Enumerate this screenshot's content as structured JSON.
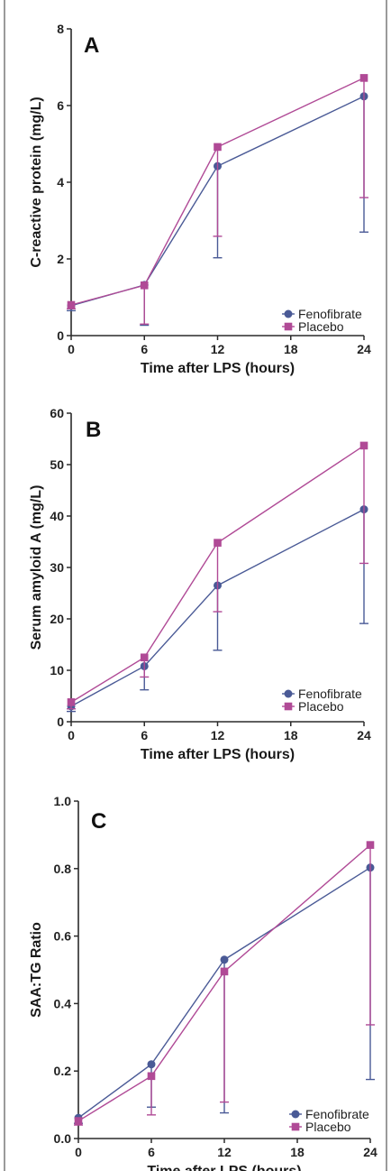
{
  "chart_data": [
    {
      "type": "line",
      "panel_label": "A",
      "xlabel": "Time after LPS (hours)",
      "ylabel": "C-reactive protein (mg/L)",
      "x_ticks": [
        0,
        6,
        12,
        18,
        24
      ],
      "y_ticks": [
        0,
        2,
        4,
        6,
        8
      ],
      "xlim": [
        0,
        24
      ],
      "ylim": [
        0,
        8
      ],
      "series": [
        {
          "name": "Fenofibrate",
          "x": [
            0,
            6,
            12,
            24
          ],
          "values": [
            0.78,
            1.32,
            4.42,
            6.24
          ],
          "error_low": [
            0.65,
            0.27,
            2.03,
            2.7
          ]
        },
        {
          "name": "Placebo",
          "x": [
            0,
            6,
            12,
            24
          ],
          "values": [
            0.8,
            1.31,
            4.92,
            6.72
          ],
          "error_low": [
            0.7,
            0.3,
            2.59,
            3.6
          ]
        }
      ]
    },
    {
      "type": "line",
      "panel_label": "B",
      "xlabel": "Time after LPS (hours)",
      "ylabel": "Serum amyloid A (mg/L)",
      "x_ticks": [
        0,
        6,
        12,
        18,
        24
      ],
      "y_ticks": [
        0,
        10,
        20,
        30,
        40,
        50,
        60
      ],
      "xlim": [
        0,
        24
      ],
      "ylim": [
        0,
        60
      ],
      "series": [
        {
          "name": "Fenofibrate",
          "x": [
            0,
            6,
            12,
            24
          ],
          "values": [
            3.0,
            10.8,
            26.5,
            41.3
          ],
          "error_low": [
            2.0,
            6.2,
            13.9,
            19.1
          ]
        },
        {
          "name": "Placebo",
          "x": [
            0,
            6,
            12,
            24
          ],
          "values": [
            3.8,
            12.5,
            34.8,
            53.7
          ],
          "error_low": [
            2.5,
            8.7,
            21.4,
            30.8
          ]
        }
      ]
    },
    {
      "type": "line",
      "panel_label": "C",
      "xlabel": "Time after LPS (hours)",
      "ylabel": "SAA:TG Ratio",
      "x_ticks": [
        0,
        6,
        12,
        18,
        24
      ],
      "y_ticks": [
        "0.0",
        "0.2",
        "0.4",
        "0.6",
        "0.8",
        "1.0"
      ],
      "xlim": [
        0,
        24
      ],
      "ylim": [
        0,
        1.0
      ],
      "series": [
        {
          "name": "Fenofibrate",
          "x": [
            0,
            6,
            12,
            24
          ],
          "values": [
            0.061,
            0.22,
            0.53,
            0.803
          ],
          "error_low": [
            0.045,
            0.093,
            0.076,
            0.175
          ]
        },
        {
          "name": "Placebo",
          "x": [
            0,
            6,
            12,
            24
          ],
          "values": [
            0.052,
            0.185,
            0.495,
            0.87
          ],
          "error_low": [
            0.04,
            0.07,
            0.108,
            0.337
          ]
        }
      ]
    }
  ],
  "colors": {
    "fenofibrate": "#4a5a96",
    "placebo": "#b04a96",
    "axis": "#2a2a2a",
    "frame": "#9a9a9a"
  },
  "markers": {
    "fenofibrate": "circle",
    "placebo": "square"
  }
}
